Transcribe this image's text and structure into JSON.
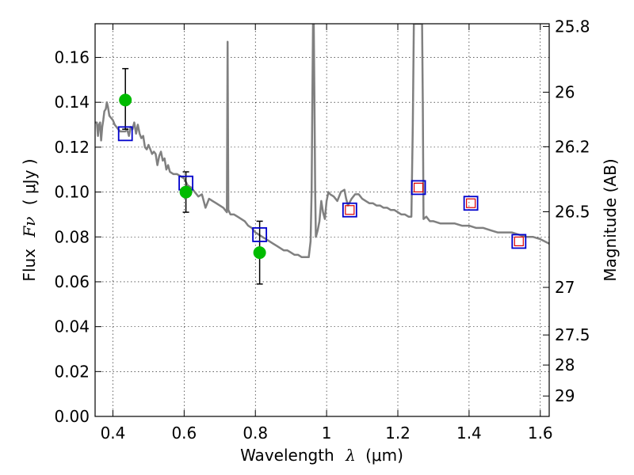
{
  "chart_data": {
    "type": "scatter",
    "title": "",
    "xlabel": "Wavelength",
    "xlabel_symbol": "λ",
    "xlabel_unit": "(μm)",
    "ylabel": "Flux",
    "ylabel_symbol": "Fν",
    "ylabel_unit": "( μJy )",
    "y2label": "Magnitude (AB)",
    "xlim": [
      0.35,
      1.625
    ],
    "ylim": [
      0.0,
      0.175
    ],
    "grid": true,
    "x_ticks": [
      0.4,
      0.6,
      0.8,
      1.0,
      1.2,
      1.4,
      1.6
    ],
    "x_tick_labels": [
      "0.4",
      "0.6",
      "0.8",
      "1",
      "1.2",
      "1.4",
      "1.6"
    ],
    "y_ticks": [
      0.0,
      0.02,
      0.04,
      0.06,
      0.08,
      0.1,
      0.12,
      0.14,
      0.16
    ],
    "y_tick_labels": [
      "0.00",
      "0.02",
      "0.04",
      "0.06",
      "0.08",
      "0.10",
      "0.12",
      "0.14",
      "0.16"
    ],
    "y2_ticks": [
      {
        "label": "25.8",
        "flux": 0.1738
      },
      {
        "label": "26",
        "flux": 0.1445
      },
      {
        "label": "26.2",
        "flux": 0.1202
      },
      {
        "label": "26.5",
        "flux": 0.0912
      },
      {
        "label": "27",
        "flux": 0.0575
      },
      {
        "label": "27.5",
        "flux": 0.0363
      },
      {
        "label": "28",
        "flux": 0.0229
      },
      {
        "label": "29",
        "flux": 0.0091
      }
    ],
    "series": [
      {
        "name": "model SED",
        "kind": "line",
        "color": "#808080",
        "points": [
          [
            0.35,
            0.131
          ],
          [
            0.355,
            0.131
          ],
          [
            0.358,
            0.125
          ],
          [
            0.361,
            0.13
          ],
          [
            0.364,
            0.131
          ],
          [
            0.367,
            0.123
          ],
          [
            0.37,
            0.129
          ],
          [
            0.373,
            0.132
          ],
          [
            0.376,
            0.136
          ],
          [
            0.38,
            0.137
          ],
          [
            0.383,
            0.14
          ],
          [
            0.386,
            0.138
          ],
          [
            0.39,
            0.134
          ],
          [
            0.395,
            0.133
          ],
          [
            0.4,
            0.132
          ],
          [
            0.405,
            0.13
          ],
          [
            0.41,
            0.129
          ],
          [
            0.415,
            0.128
          ],
          [
            0.42,
            0.127
          ],
          [
            0.425,
            0.127
          ],
          [
            0.43,
            0.127
          ],
          [
            0.435,
            0.127
          ],
          [
            0.44,
            0.128
          ],
          [
            0.445,
            0.125
          ],
          [
            0.45,
            0.129
          ],
          [
            0.455,
            0.128
          ],
          [
            0.46,
            0.131
          ],
          [
            0.465,
            0.126
          ],
          [
            0.47,
            0.13
          ],
          [
            0.475,
            0.126
          ],
          [
            0.48,
            0.124
          ],
          [
            0.485,
            0.125
          ],
          [
            0.49,
            0.12
          ],
          [
            0.495,
            0.119
          ],
          [
            0.5,
            0.121
          ],
          [
            0.505,
            0.119
          ],
          [
            0.51,
            0.117
          ],
          [
            0.515,
            0.118
          ],
          [
            0.52,
            0.117
          ],
          [
            0.525,
            0.112
          ],
          [
            0.53,
            0.116
          ],
          [
            0.535,
            0.118
          ],
          [
            0.54,
            0.114
          ],
          [
            0.545,
            0.115
          ],
          [
            0.55,
            0.11
          ],
          [
            0.555,
            0.112
          ],
          [
            0.56,
            0.109
          ],
          [
            0.57,
            0.108
          ],
          [
            0.58,
            0.108
          ],
          [
            0.59,
            0.107
          ],
          [
            0.6,
            0.106
          ],
          [
            0.61,
            0.103
          ],
          [
            0.62,
            0.102
          ],
          [
            0.63,
            0.1
          ],
          [
            0.64,
            0.098
          ],
          [
            0.65,
            0.099
          ],
          [
            0.66,
            0.093
          ],
          [
            0.67,
            0.097
          ],
          [
            0.68,
            0.096
          ],
          [
            0.69,
            0.095
          ],
          [
            0.7,
            0.094
          ],
          [
            0.71,
            0.093
          ],
          [
            0.715,
            0.092
          ],
          [
            0.72,
            0.091
          ],
          [
            0.722,
            0.167
          ],
          [
            0.724,
            0.092
          ],
          [
            0.73,
            0.09
          ],
          [
            0.74,
            0.09
          ],
          [
            0.75,
            0.089
          ],
          [
            0.76,
            0.088
          ],
          [
            0.77,
            0.087
          ],
          [
            0.78,
            0.085
          ],
          [
            0.79,
            0.084
          ],
          [
            0.8,
            0.082
          ],
          [
            0.81,
            0.081
          ],
          [
            0.82,
            0.08
          ],
          [
            0.83,
            0.079
          ],
          [
            0.84,
            0.078
          ],
          [
            0.85,
            0.077
          ],
          [
            0.86,
            0.076
          ],
          [
            0.87,
            0.075
          ],
          [
            0.88,
            0.074
          ],
          [
            0.89,
            0.074
          ],
          [
            0.9,
            0.073
          ],
          [
            0.91,
            0.072
          ],
          [
            0.92,
            0.072
          ],
          [
            0.93,
            0.071
          ],
          [
            0.94,
            0.071
          ],
          [
            0.95,
            0.071
          ],
          [
            0.955,
            0.078
          ],
          [
            0.958,
            0.1
          ],
          [
            0.96,
            0.14
          ],
          [
            0.962,
            0.175
          ],
          [
            0.964,
            0.175
          ],
          [
            0.966,
            0.14
          ],
          [
            0.968,
            0.1
          ],
          [
            0.97,
            0.08
          ],
          [
            0.975,
            0.083
          ],
          [
            0.98,
            0.087
          ],
          [
            0.985,
            0.096
          ],
          [
            0.99,
            0.091
          ],
          [
            0.995,
            0.088
          ],
          [
            1.0,
            0.096
          ],
          [
            1.005,
            0.1
          ],
          [
            1.01,
            0.099
          ],
          [
            1.02,
            0.098
          ],
          [
            1.03,
            0.096
          ],
          [
            1.04,
            0.1
          ],
          [
            1.05,
            0.101
          ],
          [
            1.055,
            0.097
          ],
          [
            1.06,
            0.094
          ],
          [
            1.07,
            0.097
          ],
          [
            1.08,
            0.099
          ],
          [
            1.09,
            0.099
          ],
          [
            1.1,
            0.097
          ],
          [
            1.11,
            0.096
          ],
          [
            1.12,
            0.095
          ],
          [
            1.13,
            0.095
          ],
          [
            1.14,
            0.094
          ],
          [
            1.15,
            0.094
          ],
          [
            1.16,
            0.093
          ],
          [
            1.17,
            0.093
          ],
          [
            1.18,
            0.092
          ],
          [
            1.19,
            0.092
          ],
          [
            1.2,
            0.091
          ],
          [
            1.21,
            0.09
          ],
          [
            1.22,
            0.09
          ],
          [
            1.23,
            0.089
          ],
          [
            1.238,
            0.089
          ],
          [
            1.242,
            0.13
          ],
          [
            1.245,
            0.175
          ],
          [
            1.268,
            0.175
          ],
          [
            1.27,
            0.14
          ],
          [
            1.272,
            0.088
          ],
          [
            1.28,
            0.089
          ],
          [
            1.285,
            0.088
          ],
          [
            1.29,
            0.087
          ],
          [
            1.3,
            0.087
          ],
          [
            1.32,
            0.086
          ],
          [
            1.34,
            0.086
          ],
          [
            1.36,
            0.086
          ],
          [
            1.38,
            0.085
          ],
          [
            1.4,
            0.085
          ],
          [
            1.42,
            0.084
          ],
          [
            1.44,
            0.084
          ],
          [
            1.46,
            0.083
          ],
          [
            1.48,
            0.082
          ],
          [
            1.5,
            0.082
          ],
          [
            1.52,
            0.082
          ],
          [
            1.54,
            0.081
          ],
          [
            1.56,
            0.08
          ],
          [
            1.58,
            0.08
          ],
          [
            1.6,
            0.079
          ],
          [
            1.625,
            0.077
          ]
        ]
      },
      {
        "name": "observed photometry",
        "kind": "points-errorbars",
        "color": "#00bb00",
        "points": [
          {
            "x": 0.435,
            "y": 0.141,
            "yerr_low": 0.128,
            "yerr_high": 0.155
          },
          {
            "x": 0.605,
            "y": 0.1,
            "yerr_low": 0.091,
            "yerr_high": 0.109
          },
          {
            "x": 0.812,
            "y": 0.073,
            "yerr_low": 0.059,
            "yerr_high": 0.087
          }
        ]
      },
      {
        "name": "model fluxes",
        "kind": "open-squares",
        "color": "#0000cc",
        "points": [
          {
            "x": 0.435,
            "y": 0.126
          },
          {
            "x": 0.605,
            "y": 0.104
          },
          {
            "x": 0.812,
            "y": 0.081
          },
          {
            "x": 1.065,
            "y": 0.092
          },
          {
            "x": 1.258,
            "y": 0.102
          },
          {
            "x": 1.405,
            "y": 0.095
          },
          {
            "x": 1.54,
            "y": 0.078
          }
        ]
      },
      {
        "name": "upper limits",
        "kind": "small-squares",
        "color": "#dd0000",
        "points": [
          {
            "x": 1.065,
            "y": 0.092
          },
          {
            "x": 1.258,
            "y": 0.102
          },
          {
            "x": 1.405,
            "y": 0.095
          },
          {
            "x": 1.54,
            "y": 0.078
          }
        ]
      }
    ]
  }
}
